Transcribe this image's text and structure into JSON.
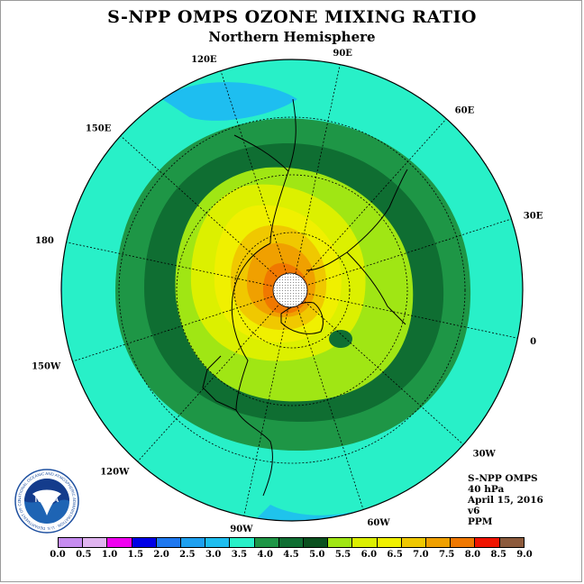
{
  "title": "S-NPP OMPS OZONE MIXING RATIO",
  "subtitle": "Northern Hemisphere",
  "longitude_labels": [
    "0",
    "30E",
    "60E",
    "90E",
    "120E",
    "150E",
    "180",
    "150W",
    "120W",
    "90W",
    "60W",
    "30W"
  ],
  "info": {
    "instrument": "S-NPP OMPS",
    "pressure": "40 hPa",
    "date": "April 15, 2016",
    "version": "v6",
    "units": "PPM"
  },
  "logo": {
    "text": "NOAA",
    "ring_text": "NATIONAL OCEANIC AND ATMOSPHERIC ADMINISTRATION · U.S. DEPARTMENT OF COMMERCE"
  },
  "colorbar": {
    "ticks": [
      "0.0",
      "0.5",
      "1.0",
      "1.5",
      "2.0",
      "2.5",
      "3.0",
      "3.5",
      "4.0",
      "4.5",
      "5.0",
      "5.5",
      "6.0",
      "6.5",
      "7.0",
      "7.5",
      "8.0",
      "8.5",
      "9.0"
    ],
    "colors": [
      "#c68cf0",
      "#e0b4f0",
      "#f000f0",
      "#0000e6",
      "#1e78f0",
      "#1ea0f0",
      "#1ebef0",
      "#28f0c8",
      "#1e9646",
      "#0f6e32",
      "#0a501e",
      "#a0e614",
      "#dcf000",
      "#f0f000",
      "#f0c800",
      "#f0a000",
      "#f07800",
      "#f01400",
      "#8c5a3c"
    ]
  },
  "map": {
    "field_bands": [
      {
        "level": "3.0-3.5",
        "color": "#1ebef0"
      },
      {
        "level": "3.5-4.0",
        "color": "#28f0c8"
      },
      {
        "level": "4.0-4.5",
        "color": "#1e9646"
      },
      {
        "level": "4.5-5.0",
        "color": "#0f6e32"
      },
      {
        "level": "5.5-6.0",
        "color": "#a0e614"
      },
      {
        "level": "6.0-6.5",
        "color": "#dcf000"
      },
      {
        "level": "6.5-7.0",
        "color": "#f0f000"
      },
      {
        "level": "7.0-7.5",
        "color": "#f0c800"
      },
      {
        "level": "7.5-8.0",
        "color": "#f0a000"
      },
      {
        "level": "8.0-8.5",
        "color": "#f07800"
      }
    ],
    "polar_no_data_color": "#ffffff"
  }
}
